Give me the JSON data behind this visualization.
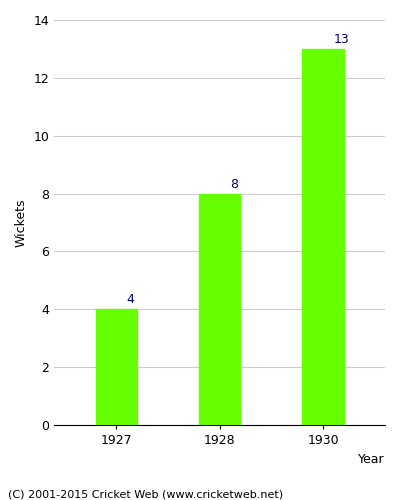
{
  "years": [
    "1927",
    "1928",
    "1930"
  ],
  "values": [
    4,
    8,
    13
  ],
  "bar_color": "#66ff00",
  "bar_edge_color": "#66ff00",
  "label_color": "#000080",
  "ylabel": "Wickets",
  "xlabel": "Year",
  "ylim": [
    0,
    14
  ],
  "yticks": [
    0,
    2,
    4,
    6,
    8,
    10,
    12,
    14
  ],
  "label_fontsize": 9,
  "axis_label_fontsize": 9,
  "tick_fontsize": 9,
  "footer_text": "(C) 2001-2015 Cricket Web (www.cricketweb.net)",
  "footer_fontsize": 8,
  "background_color": "#ffffff",
  "grid_color": "#cccccc",
  "bar_width": 0.4
}
